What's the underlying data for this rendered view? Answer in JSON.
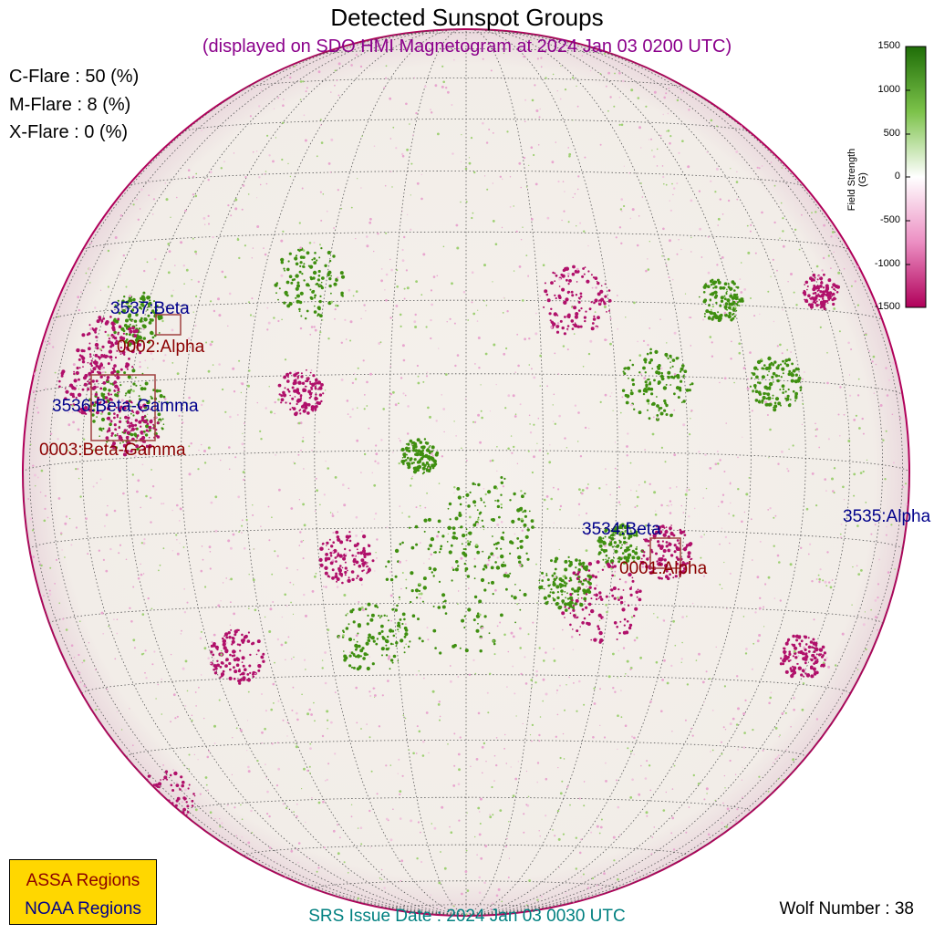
{
  "header": {
    "title": "Detected Sunspot Groups",
    "subtitle": "(displayed on SDO HMI Magnetogram at 2024 Jan 03 0200 UTC)"
  },
  "flares": [
    {
      "text": "C-Flare : 50 (%)"
    },
    {
      "text": "M-Flare :  8 (%)"
    },
    {
      "text": "X-Flare :  0 (%)"
    }
  ],
  "regions": [
    {
      "id": "noaa-3537",
      "text": "3537:Beta",
      "source": "NOAA"
    },
    {
      "id": "assa-0002",
      "text": "0002:Alpha",
      "source": "ASSA"
    },
    {
      "id": "noaa-3536",
      "text": "3536:Beta-Gamma",
      "source": "NOAA"
    },
    {
      "id": "assa-0003",
      "text": "0003:Beta-Gamma",
      "source": "ASSA"
    },
    {
      "id": "noaa-3534",
      "text": "3534:Beta",
      "source": "NOAA"
    },
    {
      "id": "assa-0001",
      "text": "0001:Alpha",
      "source": "ASSA"
    },
    {
      "id": "noaa-3535",
      "text": "3535:Alpha",
      "source": "NOAA"
    }
  ],
  "colorbar": {
    "label": "Field Strength (G)",
    "ticks": [
      "1500",
      "1000",
      "500",
      "0",
      "-500",
      "-1000",
      "-1500"
    ],
    "colors": {
      "positive": "#2e7d0a",
      "negative": "#b0005a",
      "zero": "#ffffff"
    }
  },
  "legend": {
    "assa": "ASSA Regions",
    "noaa": "NOAA Regions",
    "colors": {
      "background": "#ffd700",
      "assa": "#8b0000",
      "noaa": "#00008b"
    }
  },
  "footer": {
    "srs": "SRS Issue Date : 2024 Jan 03 0030 UTC",
    "wolf": "Wolf Number : 38"
  }
}
